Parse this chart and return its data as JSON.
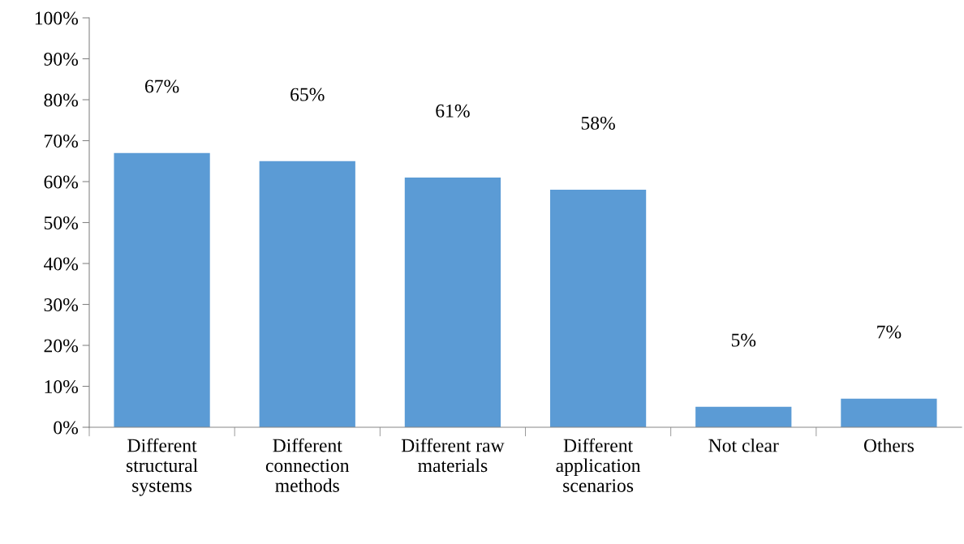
{
  "chart_data": {
    "type": "bar",
    "categories": [
      "Different\nstructural\nsystems",
      "Different\nconnection\nmethods",
      "Different raw\nmaterials",
      "Different\napplication\nscenarios",
      "Not clear",
      "Others"
    ],
    "values": [
      67,
      65,
      61,
      58,
      5,
      7
    ],
    "value_labels": [
      "67%",
      "65%",
      "61%",
      "58%",
      "5%",
      "7%"
    ],
    "color": "#5b9bd5",
    "ylim": [
      0,
      100
    ],
    "yticks": [
      {
        "value": 0,
        "label": "0%"
      },
      {
        "value": 10,
        "label": "10%"
      },
      {
        "value": 20,
        "label": "20%"
      },
      {
        "value": 30,
        "label": "30%"
      },
      {
        "value": 40,
        "label": "40%"
      },
      {
        "value": 50,
        "label": "50%"
      },
      {
        "value": 60,
        "label": "60%"
      },
      {
        "value": 70,
        "label": "70%"
      },
      {
        "value": 80,
        "label": "80%"
      },
      {
        "value": 90,
        "label": "90%"
      },
      {
        "value": 100,
        "label": "100%"
      }
    ],
    "grid": false,
    "legend": false
  }
}
